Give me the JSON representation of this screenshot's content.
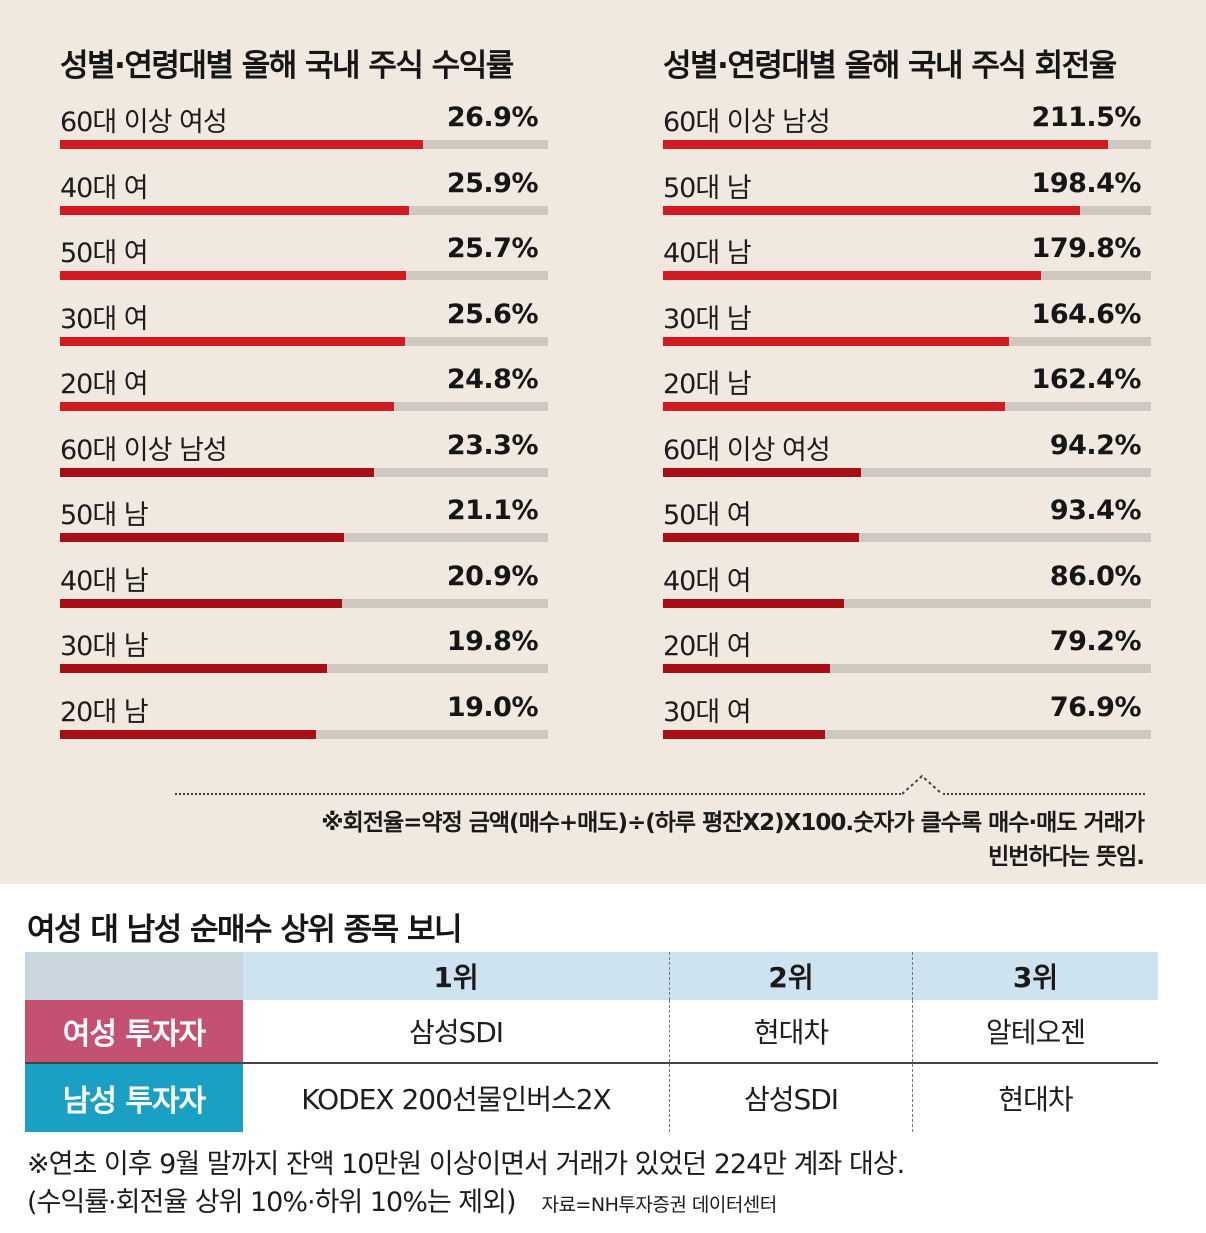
{
  "colors": {
    "women_bar": "#d21b20",
    "men_bar": "#a80f14",
    "track": "#cfc8c1",
    "women_header": "#c55172",
    "men_header": "#1aa0c4"
  },
  "chart_data": [
    {
      "type": "bar",
      "orientation": "horizontal",
      "title": "성별·연령대별 올해 국내 주식 수익률",
      "unit": "%",
      "xlim": [
        0,
        36.2
      ],
      "categories": [
        "60대 이상 여성",
        "40대 여",
        "50대 여",
        "30대 여",
        "20대 여",
        "60대 이상 남성",
        "50대 남",
        "40대 남",
        "30대 남",
        "20대 남"
      ],
      "values": [
        26.9,
        25.9,
        25.7,
        25.6,
        24.8,
        23.3,
        21.1,
        20.9,
        19.8,
        19.0
      ],
      "value_labels": [
        "26.9%",
        "25.9%",
        "25.7%",
        "25.6%",
        "24.8%",
        "23.3%",
        "21.1%",
        "20.9%",
        "19.8%",
        "19.0%"
      ],
      "groups": [
        "women",
        "women",
        "women",
        "women",
        "women",
        "men",
        "men",
        "men",
        "men",
        "men"
      ]
    },
    {
      "type": "bar",
      "orientation": "horizontal",
      "title": "성별·연령대별 올해 국내 주식 회전율",
      "unit": "%",
      "xlim": [
        0,
        232
      ],
      "categories": [
        "60대 이상 남성",
        "50대 남",
        "40대 남",
        "30대 남",
        "20대 남",
        "60대 이상 여성",
        "50대 여",
        "40대 여",
        "20대 여",
        "30대 여"
      ],
      "values": [
        211.5,
        198.4,
        179.8,
        164.6,
        162.4,
        94.2,
        93.4,
        86.0,
        79.2,
        76.9
      ],
      "value_labels": [
        "211.5%",
        "198.4%",
        "179.8%",
        "164.6%",
        "162.4%",
        "94.2%",
        "93.4%",
        "86.0%",
        "79.2%",
        "76.9%"
      ],
      "groups": [
        "men",
        "men",
        "men",
        "men",
        "men",
        "women",
        "women",
        "women",
        "women",
        "women"
      ]
    }
  ],
  "footnote": {
    "line1": "※회전율=약정 금액(매수+매도)÷(하루 평잔X2)X100.숫자가 클수록 매수·매도 거래가",
    "line2": "빈번하다는 뜻임."
  },
  "table": {
    "title": "여성 대 남성 순매수 상위 종목 보니",
    "columns": [
      "1위",
      "2위",
      "3위"
    ],
    "rows": [
      {
        "label": "여성 투자자",
        "cells": [
          "삼성SDI",
          "현대차",
          "알테오젠"
        ]
      },
      {
        "label": "남성 투자자",
        "cells": [
          "KODEX 200선물인버스2X",
          "삼성SDI",
          "현대차"
        ]
      }
    ]
  },
  "notes": {
    "line1": "※연초 이후 9월 말까지 잔액 10만원 이상이면서 거래가 있었던 224만 계좌 대상.",
    "line2": "(수익률·회전율 상위 10%·하위 10%는 제외)",
    "source": "자료=NH투자증권 데이터센터"
  }
}
